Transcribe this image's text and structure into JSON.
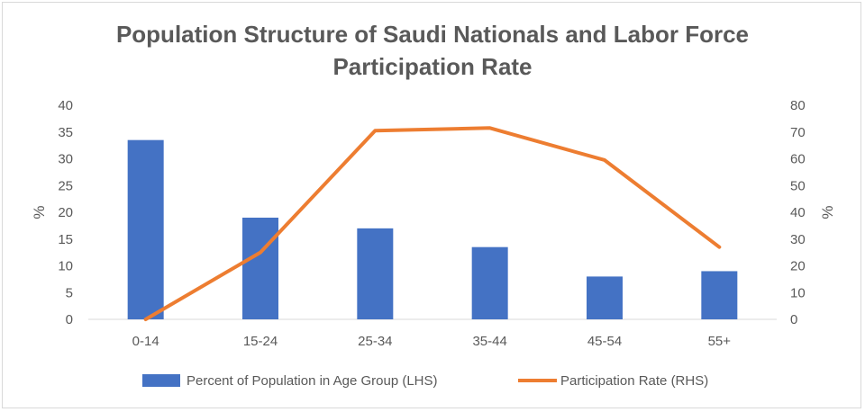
{
  "chart_data": {
    "type": "bar+line",
    "title_lines": [
      "Population Structure of Saudi Nationals and Labor Force",
      "Participation Rate"
    ],
    "categories": [
      "0-14",
      "15-24",
      "25-34",
      "35-44",
      "45-54",
      "55+"
    ],
    "series": [
      {
        "name": "Percent of Population in Age Group (LHS)",
        "type": "bar",
        "axis": "left",
        "values": [
          33.5,
          19,
          17,
          13.5,
          8,
          9
        ],
        "color": "#4472c4"
      },
      {
        "name": "Participation Rate (RHS)",
        "type": "line",
        "axis": "right",
        "values": [
          0,
          25,
          70.5,
          71.5,
          59.5,
          27
        ],
        "color": "#ed7d31"
      }
    ],
    "y_left": {
      "label": "%",
      "min": 0,
      "max": 40,
      "step": 5
    },
    "y_right": {
      "label": "%",
      "min": 0,
      "max": 80,
      "step": 10
    },
    "grid": false,
    "legend_position": "bottom"
  }
}
